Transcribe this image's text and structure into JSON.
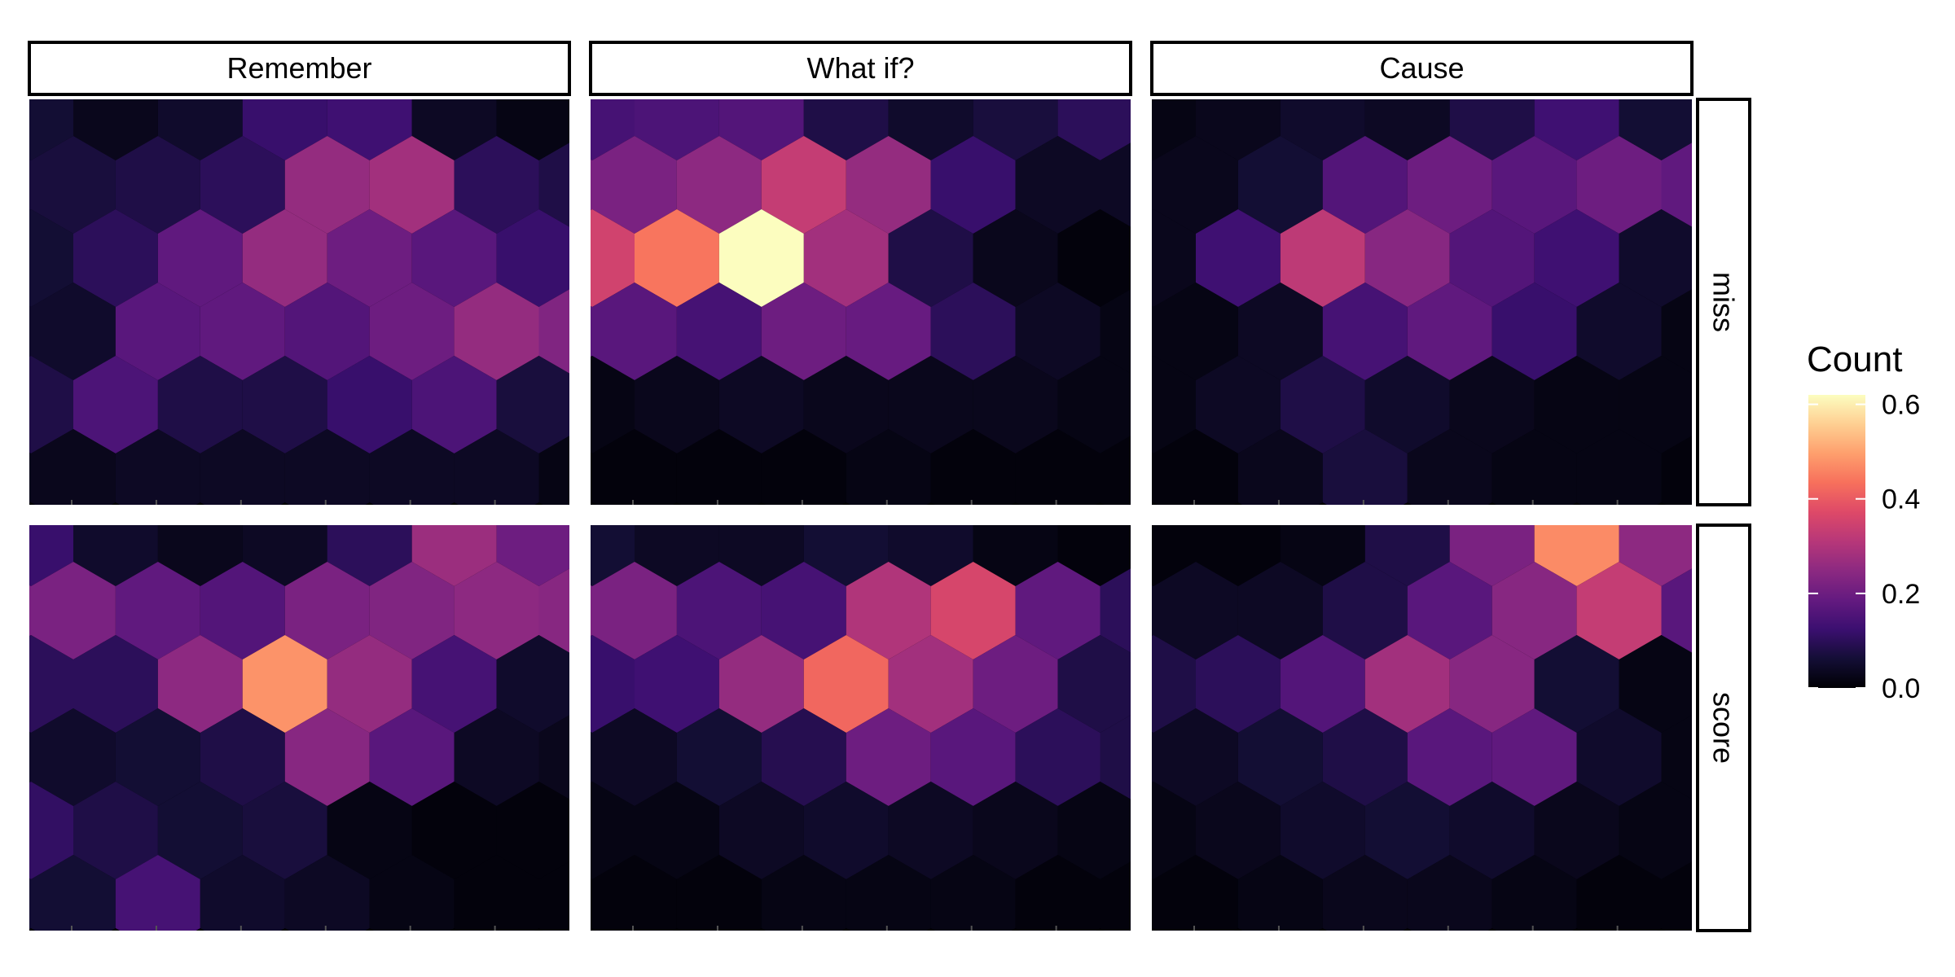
{
  "chart_data": {
    "type": "heatmap",
    "subtype": "faceted hexbin",
    "columns": [
      "Remember",
      "What if?",
      "Cause"
    ],
    "rows": [
      "miss",
      "score"
    ],
    "axes": {
      "x_ticks_labeled": false,
      "y_ticks_labeled": false,
      "grid": false
    },
    "legend": {
      "title": "Count",
      "position": "right",
      "range": [
        0.0,
        0.62
      ],
      "ticks": [
        {
          "value": 0.0,
          "label": "0.0"
        },
        {
          "value": 0.2,
          "label": "0.2"
        },
        {
          "value": 0.4,
          "label": "0.4"
        },
        {
          "value": 0.6,
          "label": "0.6"
        }
      ],
      "colormap": "magma",
      "colors": [
        "#000004",
        "#140e36",
        "#3b0f70",
        "#641a80",
        "#8c2981",
        "#b73779",
        "#de4968",
        "#f7705c",
        "#fe9f6d",
        "#fecf92",
        "#fcfdbf"
      ]
    },
    "grid_layout": {
      "hex_columns": 7,
      "hex_rows": 6,
      "odd_rows_offset": true
    },
    "panels": [
      {
        "column": "Remember",
        "row": "miss",
        "values": [
          [
            0.06,
            0.03,
            0.05,
            0.12,
            0.13,
            0.04,
            0.02
          ],
          [
            0.07,
            0.08,
            0.1,
            0.26,
            0.28,
            0.1,
            0.08
          ],
          [
            0.06,
            0.1,
            0.18,
            0.26,
            0.2,
            0.17,
            0.12
          ],
          [
            0.05,
            0.17,
            0.18,
            0.16,
            0.2,
            0.26,
            0.23
          ],
          [
            0.08,
            0.15,
            0.08,
            0.08,
            0.12,
            0.15,
            0.07
          ],
          [
            0.03,
            0.04,
            0.04,
            0.04,
            0.04,
            0.04,
            0.02
          ]
        ]
      },
      {
        "column": "What if?",
        "row": "miss",
        "values": [
          [
            0.14,
            0.15,
            0.16,
            0.08,
            0.05,
            0.07,
            0.1
          ],
          [
            0.22,
            0.25,
            0.33,
            0.26,
            0.12,
            0.04,
            0.04
          ],
          [
            0.35,
            0.44,
            0.62,
            0.28,
            0.08,
            0.03,
            0.01
          ],
          [
            0.17,
            0.14,
            0.2,
            0.19,
            0.1,
            0.04,
            0.02
          ],
          [
            0.02,
            0.03,
            0.04,
            0.03,
            0.03,
            0.03,
            0.02
          ],
          [
            0.01,
            0.01,
            0.01,
            0.02,
            0.01,
            0.01,
            0.01
          ]
        ]
      },
      {
        "column": "Cause",
        "row": "miss",
        "values": [
          [
            0.02,
            0.03,
            0.05,
            0.04,
            0.08,
            0.13,
            0.06
          ],
          [
            0.03,
            0.06,
            0.16,
            0.2,
            0.17,
            0.2,
            0.18
          ],
          [
            0.03,
            0.13,
            0.32,
            0.24,
            0.16,
            0.13,
            0.05
          ],
          [
            0.02,
            0.04,
            0.14,
            0.18,
            0.12,
            0.05,
            0.02
          ],
          [
            0.02,
            0.04,
            0.08,
            0.05,
            0.03,
            0.02,
            0.02
          ],
          [
            0.01,
            0.03,
            0.07,
            0.03,
            0.02,
            0.02,
            0.01
          ]
        ]
      },
      {
        "column": "Remember",
        "row": "score",
        "values": [
          [
            0.12,
            0.05,
            0.03,
            0.04,
            0.1,
            0.27,
            0.2
          ],
          [
            0.22,
            0.18,
            0.16,
            0.22,
            0.23,
            0.25,
            0.24
          ],
          [
            0.1,
            0.1,
            0.25,
            0.48,
            0.26,
            0.14,
            0.05
          ],
          [
            0.05,
            0.06,
            0.08,
            0.24,
            0.17,
            0.04,
            0.03
          ],
          [
            0.11,
            0.08,
            0.06,
            0.07,
            0.02,
            0.01,
            0.01
          ],
          [
            0.06,
            0.14,
            0.05,
            0.04,
            0.02,
            0.01,
            0.01
          ]
        ]
      },
      {
        "column": "What if?",
        "row": "score",
        "values": [
          [
            0.06,
            0.04,
            0.04,
            0.06,
            0.05,
            0.02,
            0.01
          ],
          [
            0.22,
            0.15,
            0.14,
            0.3,
            0.36,
            0.18,
            0.1
          ],
          [
            0.12,
            0.13,
            0.26,
            0.42,
            0.28,
            0.2,
            0.08
          ],
          [
            0.04,
            0.06,
            0.09,
            0.2,
            0.17,
            0.1,
            0.08
          ],
          [
            0.02,
            0.02,
            0.04,
            0.05,
            0.04,
            0.03,
            0.02
          ],
          [
            0.01,
            0.01,
            0.02,
            0.02,
            0.02,
            0.01,
            0.01
          ]
        ]
      },
      {
        "column": "Cause",
        "row": "score",
        "values": [
          [
            0.01,
            0.01,
            0.02,
            0.08,
            0.22,
            0.47,
            0.25
          ],
          [
            0.04,
            0.04,
            0.08,
            0.17,
            0.24,
            0.33,
            0.17
          ],
          [
            0.08,
            0.1,
            0.16,
            0.28,
            0.24,
            0.06,
            0.02
          ],
          [
            0.04,
            0.06,
            0.08,
            0.17,
            0.18,
            0.05,
            0.02
          ],
          [
            0.02,
            0.03,
            0.05,
            0.06,
            0.05,
            0.03,
            0.02
          ],
          [
            0.01,
            0.02,
            0.03,
            0.03,
            0.02,
            0.01,
            0.01
          ]
        ]
      }
    ]
  }
}
